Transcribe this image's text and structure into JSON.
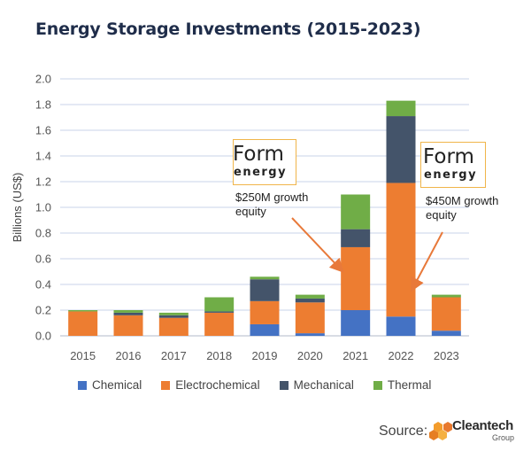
{
  "chart_data": {
    "type": "bar",
    "stacked": true,
    "title": "Energy Storage Investments (2015-2023)",
    "ylabel": "Billions (US$)",
    "xlabel": "",
    "ylim": [
      0,
      2.0
    ],
    "yticks": [
      "0.0",
      "0.2",
      "0.4",
      "0.6",
      "0.8",
      "1.0",
      "1.2",
      "1.4",
      "1.6",
      "1.8",
      "2.0"
    ],
    "grid": true,
    "legend_position": "bottom",
    "categories": [
      "2015",
      "2016",
      "2017",
      "2018",
      "2019",
      "2020",
      "2021",
      "2022",
      "2023"
    ],
    "series": [
      {
        "name": "Chemical",
        "color": "#4472c4",
        "values": [
          0.0,
          0.0,
          0.0,
          0.0,
          0.09,
          0.02,
          0.2,
          0.15,
          0.04
        ]
      },
      {
        "name": "Electrochemical",
        "color": "#ed7d31",
        "values": [
          0.19,
          0.16,
          0.14,
          0.18,
          0.18,
          0.24,
          0.49,
          1.04,
          0.26
        ]
      },
      {
        "name": "Mechanical",
        "color": "#44546a",
        "values": [
          0.0,
          0.02,
          0.02,
          0.01,
          0.17,
          0.03,
          0.14,
          0.52,
          0.0
        ]
      },
      {
        "name": "Thermal",
        "color": "#70ad47",
        "values": [
          0.01,
          0.02,
          0.02,
          0.11,
          0.02,
          0.03,
          0.27,
          0.12,
          0.02
        ]
      }
    ],
    "annotations": [
      {
        "logo_line1": "Form",
        "logo_line2": "energy",
        "text_line1": "$250M growth",
        "text_line2": "equity",
        "points_to": "2021"
      },
      {
        "logo_line1": "Form",
        "logo_line2": "energy",
        "text_line1": "$450M growth",
        "text_line2": "equity",
        "points_to": "2022"
      }
    ]
  },
  "source": {
    "label": "Source:",
    "brand": "Cleantech",
    "brand_sub": "Group"
  },
  "colors": {
    "arrow": "#e8793a",
    "logo_border": "#f0b54a",
    "grid": "#c9d3e8",
    "title": "#1f2d4a"
  }
}
